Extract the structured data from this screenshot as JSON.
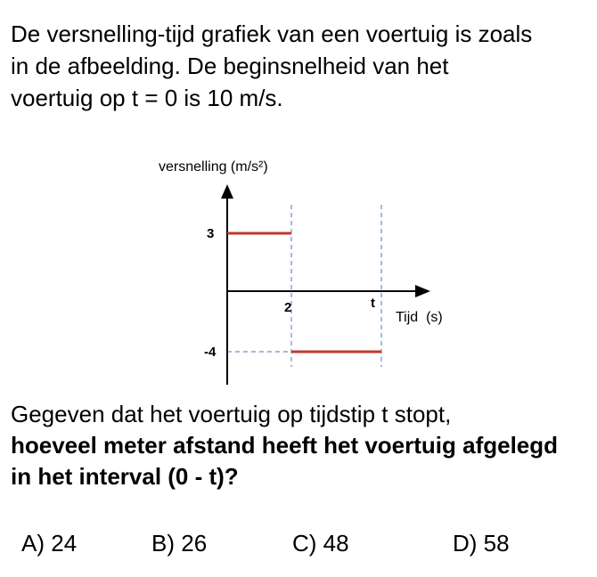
{
  "problem": {
    "intro_lines": [
      "De versnelling-tijd grafiek van een voertuig is zoals",
      "in de afbeelding. De beginsnelheid van het",
      "voertuig op t = 0 is 10 m/s."
    ],
    "question_line": "Gegeven dat het voertuig op tijdstip t stopt,",
    "question_bold_lines": [
      "hoeveel meter afstand heeft het voertuig afgelegd",
      "in het interval (0 - t)?"
    ]
  },
  "graph": {
    "y_axis_label": "versnelling (m/s²)",
    "x_axis_label": "Tijd  (s)",
    "tick_labels": {
      "y_positive": "3",
      "y_negative": "-4",
      "x_2": "2",
      "x_t": "t"
    },
    "segment_color": "#c0392b",
    "guide_color": "#4a78b5"
  },
  "chart_data": {
    "type": "line",
    "xlabel": "Tijd  (s)",
    "ylabel": "versnelling (m/s²)",
    "series": [
      {
        "x": [
          0,
          2
        ],
        "y": [
          3,
          3
        ]
      },
      {
        "x": [
          2,
          "t"
        ],
        "y": [
          -4,
          -4
        ]
      }
    ]
  },
  "options": [
    {
      "letter": "A)",
      "value": "24"
    },
    {
      "letter": "B)",
      "value": "26"
    },
    {
      "letter": "C)",
      "value": "48"
    },
    {
      "letter": "D)",
      "value": "58"
    }
  ]
}
